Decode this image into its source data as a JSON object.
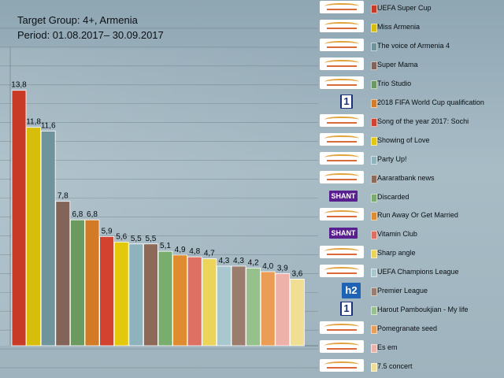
{
  "header": {
    "line1": "Target Group: 4+, Armenia",
    "line2": "Period: 01.08.2017– 30.09.2017"
  },
  "chart_data": {
    "type": "bar",
    "ylim": [
      0,
      14.5
    ],
    "categories": [
      "UEFA Super Cup",
      "Miss Armenia",
      "The voice of Armenia 4",
      "Super Mama",
      "Trio Studio",
      "2018 FIFA World Cup qualification",
      "Song of the year 2017: Sochi",
      "Showing of Love",
      "Party Up!",
      "Aararatbank news",
      "Discarded",
      "Run Away Or Get Married",
      "Vitamin Club",
      "Sharp angle",
      "UEFA Champions League",
      "Premier League",
      "Harout Pamboukjian - My life",
      "Pomegranate seed",
      "Es em",
      "7.5 concert"
    ],
    "values": [
      13.8,
      11.8,
      11.6,
      7.8,
      6.8,
      6.8,
      5.9,
      5.6,
      5.5,
      5.5,
      5.1,
      4.9,
      4.8,
      4.7,
      4.3,
      4.3,
      4.2,
      4.0,
      3.9,
      3.6
    ],
    "value_labels": [
      "13,8",
      "11,8",
      "11,6",
      "7,8",
      "6,8",
      "6,8",
      "5,9",
      "5,6",
      "5,5",
      "5,5",
      "5,1",
      "4,9",
      "4,8",
      "4,7",
      "4,3",
      "4,3",
      "4,2",
      "4,0",
      "3,9",
      "3,6"
    ],
    "colors": [
      "#c83a26",
      "#d7be0b",
      "#6f949b",
      "#826458",
      "#6a9a5f",
      "#d37a27",
      "#d3412f",
      "#e4c80c",
      "#8fb3bd",
      "#8d6a58",
      "#79ad6e",
      "#de8c2f",
      "#dd6f63",
      "#ecd35a",
      "#a9c7cf",
      "#9b7d6d",
      "#96c08c",
      "#eb9d55",
      "#eeb1a9",
      "#f0df93"
    ],
    "channel_logos": [
      "armenia",
      "armenia",
      "armenia",
      "armenia",
      "armenia",
      "one",
      "armenia",
      "armenia",
      "armenia",
      "armenia",
      "shant",
      "armenia",
      "shant",
      "armenia",
      "armenia",
      "h2",
      "one",
      "armenia",
      "armenia",
      "armenia"
    ]
  }
}
